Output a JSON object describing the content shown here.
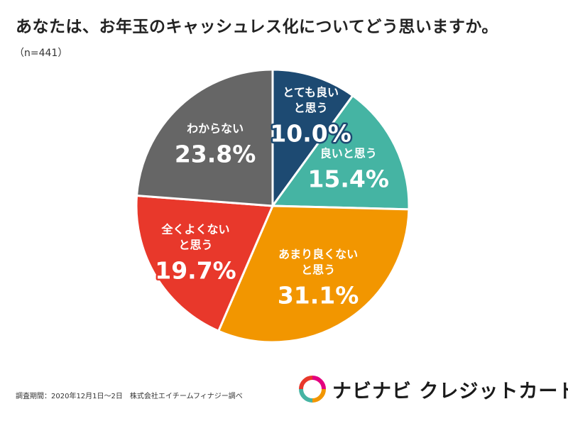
{
  "title": "あなたは、お年玉のキャッシュレス化についてどう思いますか。",
  "sample": "（n=441）",
  "chart_data": {
    "type": "pie",
    "title": "あなたは、お年玉のキャッシュレス化についてどう思いますか。",
    "slices": [
      {
        "label_lines": [
          "とても良い",
          "と思う"
        ],
        "value": 10.0,
        "pct_text": "10.0%",
        "color": "#1d4a72"
      },
      {
        "label_lines": [
          "良いと思う"
        ],
        "value": 15.4,
        "pct_text": "15.4%",
        "color": "#45b4a3"
      },
      {
        "label_lines": [
          "あまり良くない",
          "と思う"
        ],
        "value": 31.1,
        "pct_text": "31.1%",
        "color": "#f29600"
      },
      {
        "label_lines": [
          "全くよくない",
          "と思う"
        ],
        "value": 19.7,
        "pct_text": "19.7%",
        "color": "#e8382b"
      },
      {
        "label_lines": [
          "わからない"
        ],
        "value": 23.8,
        "pct_text": "23.8%",
        "color": "#666666"
      }
    ]
  },
  "footnote": "調査期間：2020年12月1日〜2日　株式会社エイチームフィナジー調べ",
  "brand": {
    "name": "ナビナビ クレジットカード",
    "logo_icon": "navinavi-logo-icon",
    "logo_colors": [
      "#45b4a3",
      "#f29600",
      "#e8382b",
      "#e3007f"
    ]
  }
}
